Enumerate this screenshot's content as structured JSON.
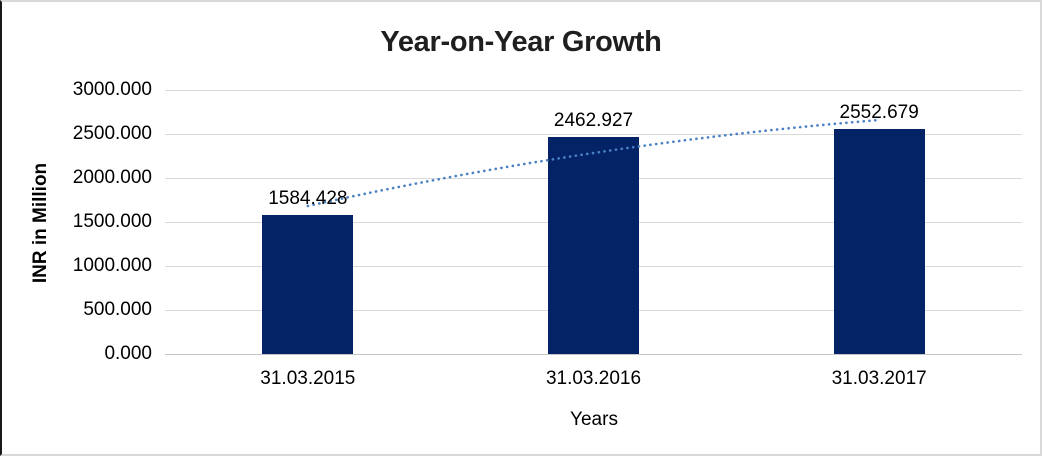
{
  "chart": {
    "colors": {
      "bar": "#032366",
      "trendline": "#4a80c4",
      "gridline": "#d9d9d9",
      "axis_line": "#c6c6c6",
      "title_text": "#1f1f1f"
    }
  },
  "chart_data": {
    "type": "bar",
    "title": "Year-on-Year Growth",
    "xlabel": "Years",
    "ylabel": "INR in Million",
    "categories": [
      "31.03.2015",
      "31.03.2016",
      "31.03.2017"
    ],
    "values": [
      1584.428,
      2462.927,
      2552.679
    ],
    "data_labels": [
      "1584.428",
      "2462.927",
      "2552.679"
    ],
    "ylim": [
      0,
      3000
    ],
    "yticks": [
      {
        "value": 3000,
        "label": "3000.000"
      },
      {
        "value": 2500,
        "label": "2500.000"
      },
      {
        "value": 2000,
        "label": "2000.000"
      },
      {
        "value": 1500,
        "label": "1500.000"
      },
      {
        "value": 1000,
        "label": "1000.000"
      },
      {
        "value": 500,
        "label": "500.000"
      },
      {
        "value": 0,
        "label": "0.000"
      }
    ],
    "grid": true,
    "legend": false,
    "trendline": {
      "style": "dotted",
      "values": [
        1682,
        2284,
        2659
      ]
    }
  }
}
